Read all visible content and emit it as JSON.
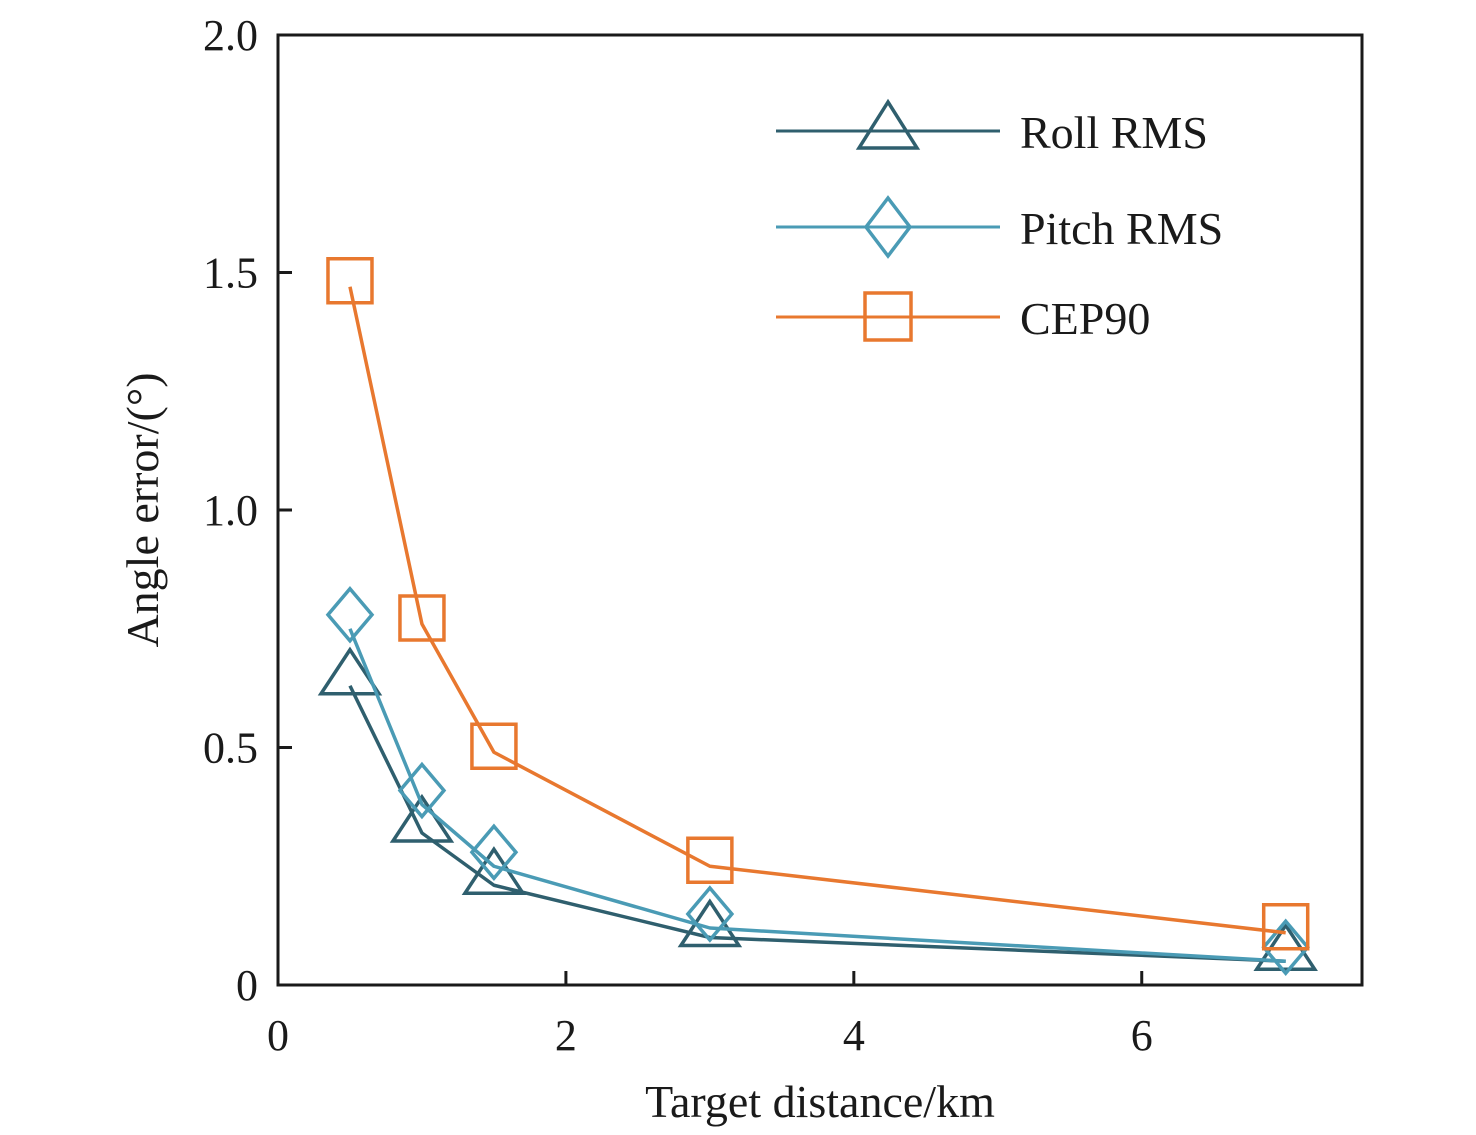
{
  "chart_data": {
    "type": "line",
    "title": "",
    "xlabel": "Target distance/km",
    "ylabel": "Angle error/(°)",
    "xlim": [
      0,
      7.53
    ],
    "ylim": [
      0,
      2.0
    ],
    "xticks": [
      0,
      2,
      4,
      6
    ],
    "xtick_labels": [
      "0",
      "2",
      "4",
      "6"
    ],
    "yticks": [
      0,
      0.5,
      1.0,
      1.5,
      2.0
    ],
    "ytick_labels": [
      "0",
      "0.5",
      "1.0",
      "1.5",
      "2.0"
    ],
    "grid": false,
    "legend_position": "top-right",
    "x": [
      0.5,
      1,
      1.5,
      3,
      7
    ],
    "series": [
      {
        "name": "Roll RMS",
        "marker": "triangle",
        "color": "#2f5f6e",
        "values": [
          0.63,
          0.32,
          0.21,
          0.1,
          0.05
        ]
      },
      {
        "name": "Pitch RMS",
        "marker": "diamond",
        "color": "#4a9bb5",
        "values": [
          0.75,
          0.38,
          0.25,
          0.12,
          0.05
        ]
      },
      {
        "name": "CEP90",
        "marker": "square",
        "color": "#e8782f",
        "values": [
          1.47,
          0.76,
          0.49,
          0.25,
          0.11
        ]
      }
    ]
  }
}
